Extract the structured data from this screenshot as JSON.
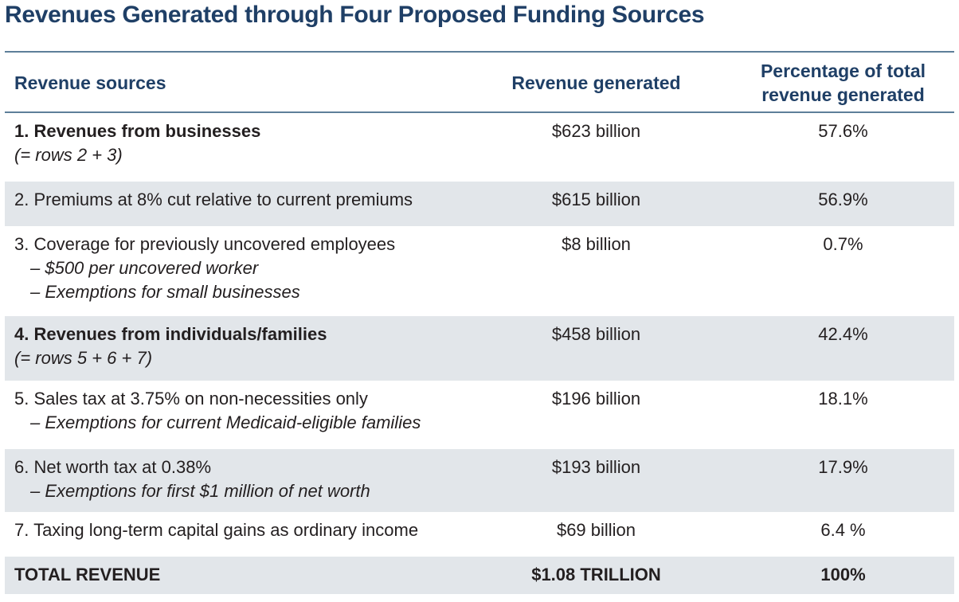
{
  "chart_data": {
    "type": "table",
    "title": "Revenues Generated through Four Proposed Funding Sources",
    "columns": [
      "Revenue sources",
      "Revenue generated",
      "Percentage of total revenue generated"
    ],
    "rows": [
      {
        "label": "1. Revenues from businesses",
        "notes": [
          "(= rows 2 + 3)"
        ],
        "revenue": "$623 billion",
        "percent": "57.6%"
      },
      {
        "label": "2. Premiums at 8% cut relative to current premiums",
        "notes": [],
        "revenue": "$615 billion",
        "percent": "56.9%"
      },
      {
        "label": "3. Coverage for previously uncovered employees",
        "notes": [
          "– $500 per uncovered worker",
          "– Exemptions for small businesses"
        ],
        "revenue": "$8 billion",
        "percent": "0.7%"
      },
      {
        "label": "4. Revenues from individuals/families",
        "notes": [
          "(= rows 5 + 6 + 7)"
        ],
        "revenue": "$458 billion",
        "percent": "42.4%"
      },
      {
        "label": "5. Sales tax at 3.75% on non-necessities only",
        "notes": [
          "– Exemptions for current Medicaid-eligible families"
        ],
        "revenue": "$196 billion",
        "percent": "18.1%"
      },
      {
        "label": "6. Net worth tax at 0.38%",
        "notes": [
          "– Exemptions for first $1 million of net worth"
        ],
        "revenue": "$193 billion",
        "percent": "17.9%"
      },
      {
        "label": "7. Taxing long-term capital gains as ordinary income",
        "notes": [],
        "revenue": "$69 billion",
        "percent": "6.4 %"
      },
      {
        "label": "TOTAL REVENUE",
        "notes": [],
        "revenue": "$1.08 TRILLION",
        "percent": "100%"
      }
    ]
  }
}
